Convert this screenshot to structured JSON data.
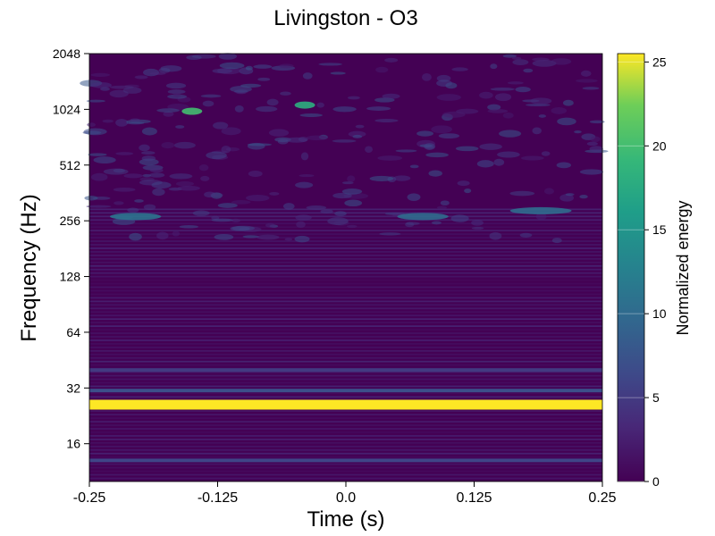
{
  "chart_data": {
    "type": "heatmap",
    "title": "Livingston - O3",
    "xlabel": "Time (s)",
    "ylabel": "Frequency (Hz)",
    "x_ticks": [
      "-0.25",
      "-0.125",
      "0.0",
      "0.125",
      "0.25"
    ],
    "x_tick_values": [
      -0.25,
      -0.125,
      0.0,
      0.125,
      0.25
    ],
    "xlim": [
      -0.25,
      0.25
    ],
    "y_scale": "log2",
    "y_ticks": [
      "16",
      "32",
      "64",
      "128",
      "256",
      "512",
      "1024",
      "2048"
    ],
    "y_tick_values": [
      16,
      32,
      64,
      128,
      256,
      512,
      1024,
      2048
    ],
    "ylim": [
      10,
      2048
    ],
    "colorbar": {
      "label": "Normalized energy",
      "ticks": [
        "0",
        "5",
        "10",
        "15",
        "20",
        "25"
      ],
      "tick_values": [
        0,
        5,
        10,
        15,
        20,
        25
      ],
      "range": [
        0,
        25.5
      ],
      "colormap": "viridis"
    },
    "features": [
      {
        "frequency": 26,
        "t_start": -0.25,
        "t_end": 0.25,
        "energy": 25.5
      },
      {
        "frequency": 13,
        "t_start": -0.25,
        "t_end": 0.25,
        "energy": 6
      },
      {
        "frequency": 40,
        "t_start": -0.25,
        "t_end": 0.25,
        "energy": 5
      },
      {
        "frequency": 31,
        "t_start": -0.25,
        "t_end": 0.25,
        "energy": 7
      },
      {
        "frequency": 270,
        "t_start": -0.23,
        "t_end": -0.18,
        "energy": 11
      },
      {
        "frequency": 270,
        "t_start": 0.05,
        "t_end": 0.1,
        "energy": 10
      },
      {
        "frequency": 290,
        "t_start": 0.16,
        "t_end": 0.22,
        "energy": 10
      },
      {
        "frequency": 1000,
        "t_start": -0.16,
        "t_end": -0.14,
        "energy": 20
      },
      {
        "frequency": 1080,
        "t_start": -0.05,
        "t_end": -0.03,
        "energy": 18
      }
    ]
  },
  "colors": {
    "viridis_low": "#440154",
    "viridis_mid": "#21918c",
    "viridis_high": "#fde725"
  }
}
